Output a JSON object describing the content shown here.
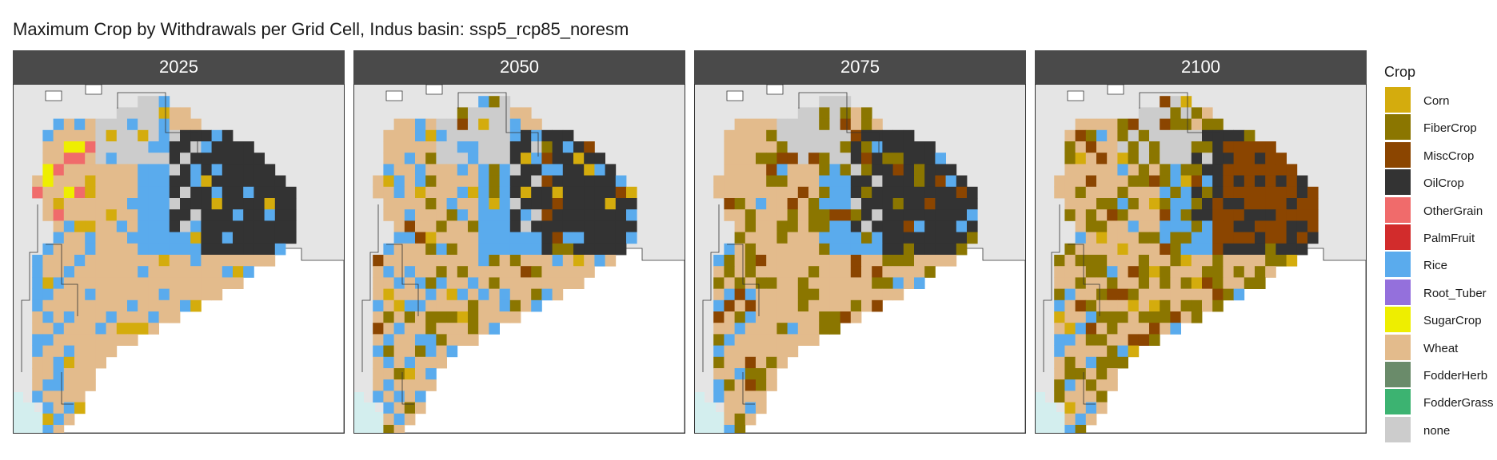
{
  "title": "Maximum Crop by Withdrawals per Grid Cell, Indus basin: ssp5_rcp85_noresm",
  "panels": [
    {
      "label": "2025",
      "key": "p2025"
    },
    {
      "label": "2050",
      "key": "p2050"
    },
    {
      "label": "2075",
      "key": "p2075"
    },
    {
      "label": "2100",
      "key": "p2100"
    }
  ],
  "legend": {
    "title": "Crop",
    "items": [
      {
        "label": "Corn",
        "color": "#d4ac0d"
      },
      {
        "label": "FiberCrop",
        "color": "#8b7600"
      },
      {
        "label": "MiscCrop",
        "color": "#8b4500"
      },
      {
        "label": "OilCrop",
        "color": "#333333"
      },
      {
        "label": "OtherGrain",
        "color": "#f06b6b"
      },
      {
        "label": "PalmFruit",
        "color": "#d22c2c"
      },
      {
        "label": "Rice",
        "color": "#5aabed"
      },
      {
        "label": "Root_Tuber",
        "color": "#9470dc"
      },
      {
        "label": "SugarCrop",
        "color": "#eeee00"
      },
      {
        "label": "Wheat",
        "color": "#e3bb8c"
      },
      {
        "label": "FodderHerb",
        "color": "#6a8b6a"
      },
      {
        "label": "FodderGrass",
        "color": "#3cb371"
      },
      {
        "label": "none",
        "color": "#cccccc"
      }
    ]
  },
  "colors": {
    "map_background": "#e5e5e5",
    "outside_region": "#ffffff",
    "sea": "#d3eeee",
    "boundary_line": "#333333",
    "strip_background": "#4a4a4a",
    "strip_text": "#ffffff"
  }
}
